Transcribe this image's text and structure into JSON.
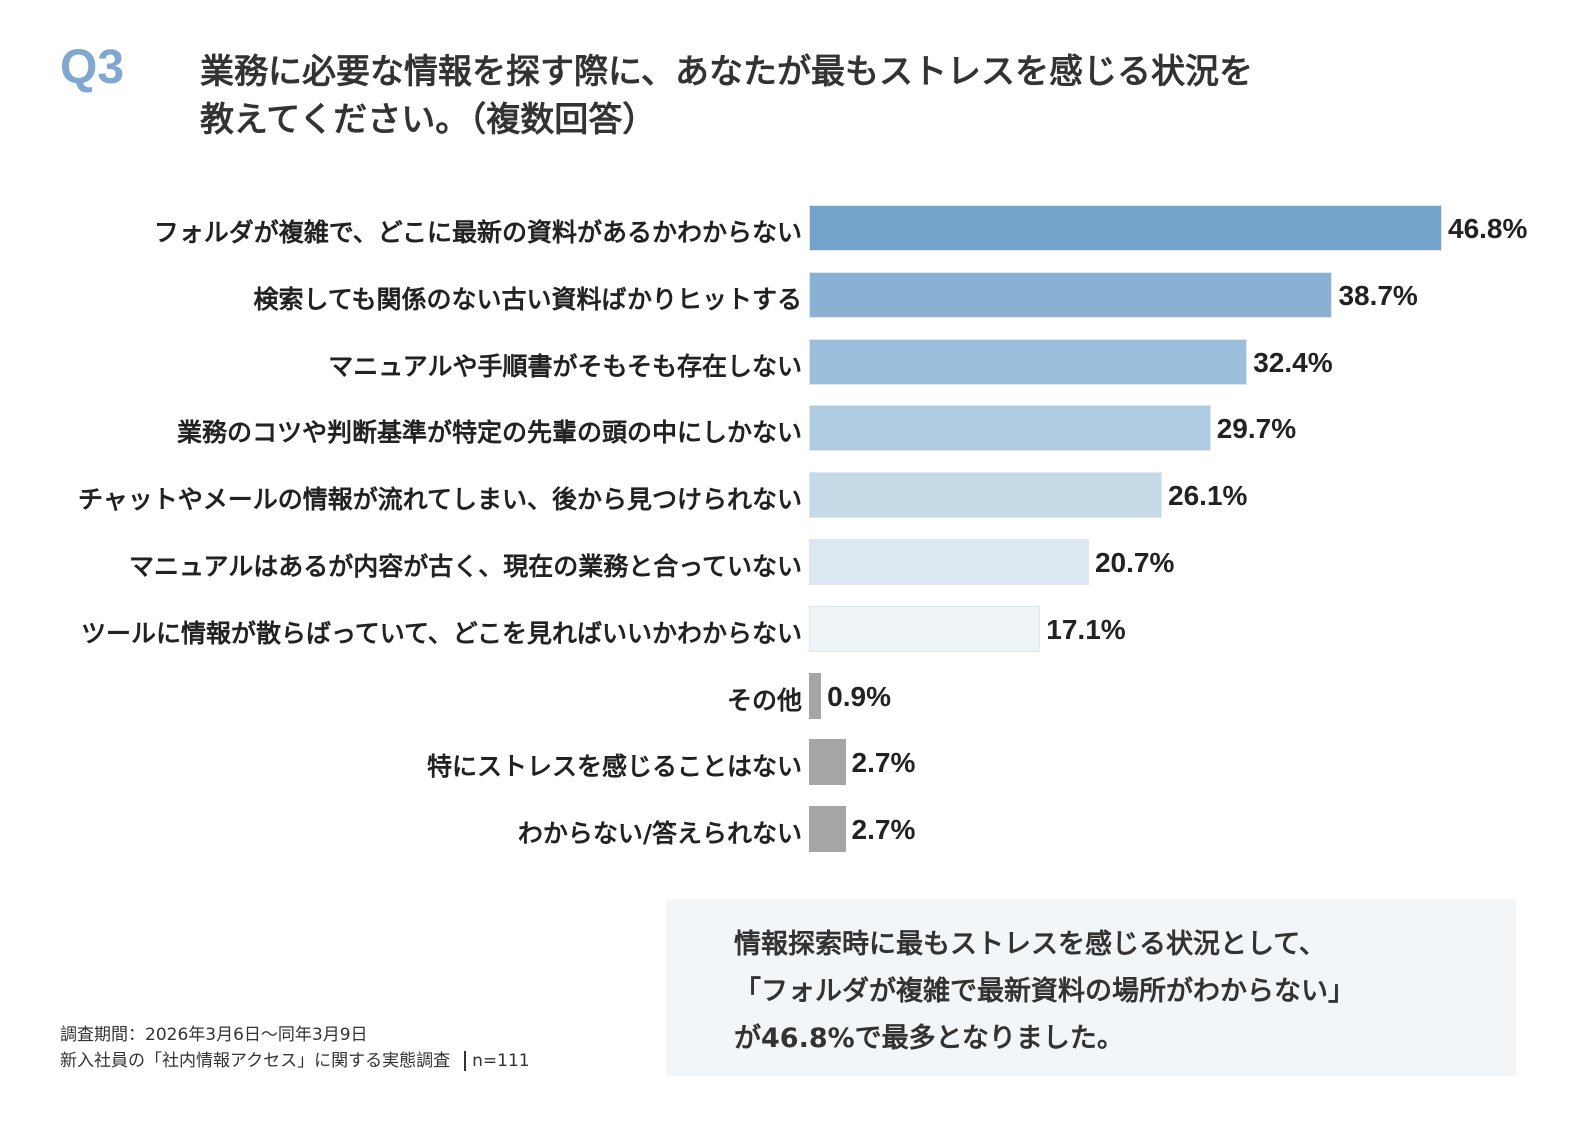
{
  "question": {
    "number": "Q3",
    "line1": "業務に必要な情報を探す際に、あなたが最もストレスを感じる状況を",
    "line2": "教えてください。（複数回答）"
  },
  "chart_data": {
    "type": "bar",
    "orientation": "horizontal",
    "unit": "%",
    "categories": [
      "フォルダが複雑で、どこに最新の資料があるかわからない",
      "検索しても関係のない古い資料ばかりヒットする",
      "マニュアルや手順書がそもそも存在しない",
      "業務のコツや判断基準が特定の先輩の頭の中にしかない",
      "チャットやメールの情報が流れてしまい、後から見つけられない",
      "マニュアルはあるが内容が古く、現在の業務と合っていない",
      "ツールに情報が散らばっていて、どこを見ればいいかわからない",
      "その他",
      "特にストレスを感じることはない",
      "わからない/答えられない"
    ],
    "values": [
      46.8,
      38.7,
      32.4,
      29.7,
      26.1,
      20.7,
      17.1,
      0.9,
      2.7,
      2.7
    ],
    "labels": [
      "46.8%",
      "38.7%",
      "32.4%",
      "29.7%",
      "26.1%",
      "20.7%",
      "17.1%",
      "0.9%",
      "2.7%",
      "2.7%"
    ],
    "colors": [
      "#74a3c9",
      "#8ab1d3",
      "#9bbedb",
      "#b0cce2",
      "#c6d9e7",
      "#dce7f2",
      "#eef3f8",
      "#a6a6a6",
      "#a6a6a6",
      "#a6a6a6"
    ],
    "grid": false
  },
  "footer": {
    "period": "調査期間：2026年3月6日～同年3月9日",
    "survey": "新入社員の「社内情報アクセス」に関する実態調査",
    "n": "n=111"
  },
  "summary": {
    "line1": "情報探索時に最もストレスを感じる状況として、",
    "line2": "「フォルダが複雑で最新資料の場所がわからない」",
    "line3": "が46.8%で最多となりました。"
  }
}
